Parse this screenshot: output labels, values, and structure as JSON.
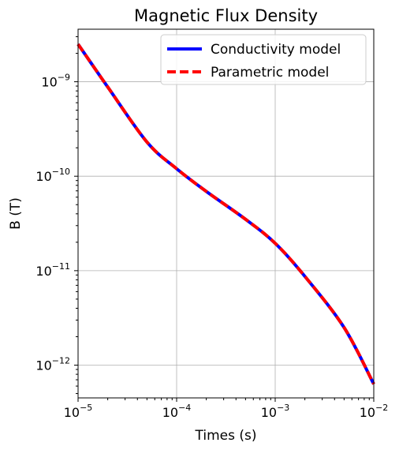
{
  "chart_data": {
    "type": "line",
    "title": "Magnetic Flux Density",
    "xlabel": "Times (s)",
    "ylabel": "B (T)",
    "xscale": "log",
    "yscale": "log",
    "xlim": [
      1e-05,
      0.01
    ],
    "ylim": [
      4.5e-13,
      3.6e-09
    ],
    "grid": true,
    "legend_position": "top-right",
    "x_ticks": [
      {
        "base": "10",
        "exp": "−5",
        "value": 1e-05
      },
      {
        "base": "10",
        "exp": "−4",
        "value": 0.0001
      },
      {
        "base": "10",
        "exp": "−3",
        "value": 0.001
      },
      {
        "base": "10",
        "exp": "−2",
        "value": 0.01
      }
    ],
    "y_ticks": [
      {
        "base": "10",
        "exp": "−12",
        "value": 1e-12
      },
      {
        "base": "10",
        "exp": "−11",
        "value": 1e-11
      },
      {
        "base": "10",
        "exp": "−10",
        "value": 1e-10
      },
      {
        "base": "10",
        "exp": "−9",
        "value": 1e-09
      }
    ],
    "series": [
      {
        "name": "Conductivity model",
        "color": "#0000ff",
        "style": "solid",
        "x": [
          1e-05,
          2e-05,
          5e-05,
          0.0001,
          0.0002,
          0.0005,
          0.001,
          0.002,
          0.005,
          0.01
        ],
        "y": [
          2.5e-09,
          8.8e-10,
          2.3e-10,
          1.2e-10,
          6.9e-11,
          3.5e-11,
          1.95e-11,
          8.7e-12,
          2.5e-12,
          6.3e-13
        ]
      },
      {
        "name": "Parametric model",
        "color": "#ff0000",
        "style": "dashed",
        "x": [
          1e-05,
          2e-05,
          5e-05,
          0.0001,
          0.0002,
          0.0005,
          0.001,
          0.002,
          0.005,
          0.01
        ],
        "y": [
          2.5e-09,
          8.8e-10,
          2.3e-10,
          1.2e-10,
          6.9e-11,
          3.5e-11,
          1.95e-11,
          8.7e-12,
          2.5e-12,
          6.3e-13
        ]
      }
    ]
  }
}
